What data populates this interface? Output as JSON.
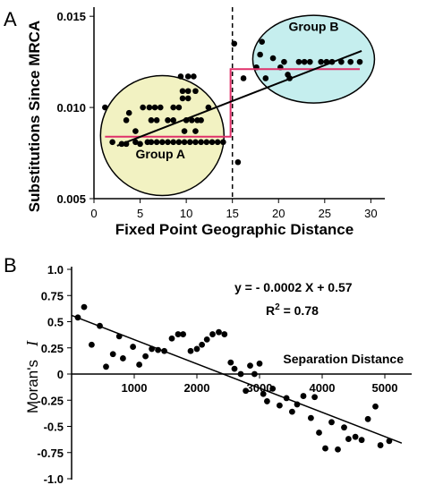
{
  "chart_data": [
    {
      "panel": "A",
      "type": "scatter",
      "xlabel": "Fixed Point Geographic Distance",
      "ylabel": "Substitutions Since MRCA",
      "xlim": [
        0,
        32
      ],
      "ylim": [
        0.005,
        0.0155
      ],
      "xticks": [
        "0",
        "5",
        "10",
        "15",
        "20",
        "25",
        "30"
      ],
      "yticks": [
        "0.005",
        "0.010",
        "0.015"
      ],
      "groups": [
        {
          "label": "Group A",
          "color": "#f2f2c2"
        },
        {
          "label": "Group B",
          "color": "#c5eeee"
        }
      ],
      "points": [
        [
          1.2,
          0.01
        ],
        [
          2,
          0.0081
        ],
        [
          3,
          0.008
        ],
        [
          3.5,
          0.008
        ],
        [
          4.5,
          0.0081
        ],
        [
          5,
          0.008
        ],
        [
          3.5,
          0.0093
        ],
        [
          4.5,
          0.0087
        ],
        [
          3.8,
          0.0097
        ],
        [
          5.3,
          0.01
        ],
        [
          6,
          0.01
        ],
        [
          6.6,
          0.01
        ],
        [
          7.2,
          0.01
        ],
        [
          8.6,
          0.01
        ],
        [
          9.2,
          0.01
        ],
        [
          12.4,
          0.01
        ],
        [
          6.2,
          0.0093
        ],
        [
          6.8,
          0.0093
        ],
        [
          8,
          0.0093
        ],
        [
          8.6,
          0.0093
        ],
        [
          10,
          0.0093
        ],
        [
          10.6,
          0.0093
        ],
        [
          11.2,
          0.0093
        ],
        [
          5.8,
          0.0081
        ],
        [
          6.2,
          0.0081
        ],
        [
          6.8,
          0.0081
        ],
        [
          7.4,
          0.0081
        ],
        [
          8,
          0.0081
        ],
        [
          8.6,
          0.0081
        ],
        [
          9.2,
          0.0081
        ],
        [
          9.8,
          0.0081
        ],
        [
          10.4,
          0.0081
        ],
        [
          11,
          0.0081
        ],
        [
          11.6,
          0.0081
        ],
        [
          12.2,
          0.0081
        ],
        [
          12.8,
          0.0081
        ],
        [
          13.4,
          0.0081
        ],
        [
          14,
          0.0081
        ],
        [
          9.6,
          0.0105
        ],
        [
          10.2,
          0.0105
        ],
        [
          9.6,
          0.0109
        ],
        [
          10.2,
          0.0109
        ],
        [
          11,
          0.0109
        ],
        [
          9.4,
          0.0117
        ],
        [
          10.2,
          0.0117
        ],
        [
          10.8,
          0.0117
        ],
        [
          9.8,
          0.0087
        ],
        [
          11,
          0.0087
        ],
        [
          11.6,
          0.0093
        ],
        [
          15.2,
          0.0135
        ],
        [
          15.6,
          0.007
        ],
        [
          16.2,
          0.0116
        ],
        [
          17.6,
          0.0122
        ],
        [
          18.2,
          0.0136
        ],
        [
          18.6,
          0.0116
        ],
        [
          19.4,
          0.0127
        ],
        [
          20.2,
          0.0122
        ],
        [
          20.6,
          0.0125
        ],
        [
          21.2,
          0.0116
        ],
        [
          22.2,
          0.0125
        ],
        [
          22.8,
          0.0125
        ],
        [
          23.4,
          0.0125
        ],
        [
          24.6,
          0.0125
        ],
        [
          25.2,
          0.0125
        ],
        [
          25.8,
          0.0125
        ],
        [
          26.8,
          0.0125
        ],
        [
          27.8,
          0.0125
        ],
        [
          28.8,
          0.0125
        ],
        [
          18,
          0.0129
        ],
        [
          21,
          0.0118
        ]
      ],
      "step_fit": [
        [
          1.2,
          0.0084
        ],
        [
          14.8,
          0.0084
        ],
        [
          14.8,
          0.0121
        ],
        [
          28.8,
          0.0121
        ]
      ],
      "linear_fit": [
        [
          2.5,
          0.0079
        ],
        [
          29,
          0.0131
        ]
      ],
      "vline_x": 15,
      "step_color": "#e0306a"
    },
    {
      "panel": "B",
      "type": "scatter",
      "xlabel": "Separation Distance",
      "ylabel_main": "Moran's",
      "ylabel_var": "I",
      "xlim": [
        0,
        5400
      ],
      "ylim": [
        -1.05,
        1.1
      ],
      "xticks": [
        "1000",
        "2000",
        "3000",
        "4000",
        "5000"
      ],
      "yticks": [
        "1.0",
        "0.75",
        "0.5",
        "0.25",
        "0",
        "-0.25",
        "-0.5",
        "-0.75",
        "-1.0"
      ],
      "equation": "y = - 0.0002 X + 0.57",
      "r2_prefix": "R",
      "r2_exp": "2",
      "r2_value": " = 0.78",
      "points": [
        [
          100,
          0.54
        ],
        [
          200,
          0.64
        ],
        [
          320,
          0.28
        ],
        [
          450,
          0.46
        ],
        [
          550,
          0.07
        ],
        [
          660,
          0.19
        ],
        [
          760,
          0.36
        ],
        [
          820,
          0.15
        ],
        [
          980,
          0.26
        ],
        [
          1080,
          0.09
        ],
        [
          1180,
          0.17
        ],
        [
          1280,
          0.24
        ],
        [
          1380,
          0.23
        ],
        [
          1480,
          0.22
        ],
        [
          1600,
          0.34
        ],
        [
          1700,
          0.38
        ],
        [
          1780,
          0.38
        ],
        [
          1900,
          0.22
        ],
        [
          2000,
          0.24
        ],
        [
          2080,
          0.28
        ],
        [
          2160,
          0.33
        ],
        [
          2250,
          0.38
        ],
        [
          2350,
          0.4
        ],
        [
          2440,
          0.38
        ],
        [
          2540,
          0.11
        ],
        [
          2600,
          0.05
        ],
        [
          2700,
          0.0
        ],
        [
          2780,
          -0.16
        ],
        [
          2850,
          0.08
        ],
        [
          2920,
          0.0
        ],
        [
          3000,
          0.1
        ],
        [
          3060,
          -0.19
        ],
        [
          3120,
          -0.26
        ],
        [
          3210,
          -0.14
        ],
        [
          3320,
          -0.3
        ],
        [
          3430,
          -0.23
        ],
        [
          3520,
          -0.36
        ],
        [
          3600,
          -0.29
        ],
        [
          3700,
          -0.21
        ],
        [
          3820,
          -0.42
        ],
        [
          3880,
          -0.22
        ],
        [
          3950,
          -0.56
        ],
        [
          4050,
          -0.71
        ],
        [
          4150,
          -0.46
        ],
        [
          4250,
          -0.72
        ],
        [
          4350,
          -0.51
        ],
        [
          4420,
          -0.62
        ],
        [
          4530,
          -0.6
        ],
        [
          4630,
          -0.63
        ],
        [
          4730,
          -0.43
        ],
        [
          4850,
          -0.31
        ],
        [
          4930,
          -0.68
        ],
        [
          5070,
          -0.64
        ]
      ],
      "fit_line": [
        [
          0,
          0.56
        ],
        [
          5270,
          -0.66
        ]
      ]
    }
  ]
}
